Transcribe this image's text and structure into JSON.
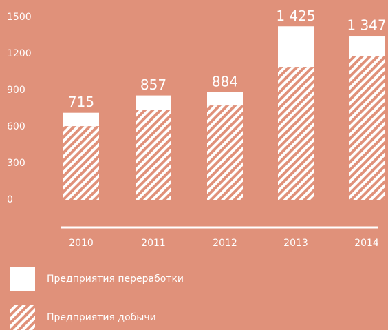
{
  "chart_data": {
    "type": "bar",
    "stacked": true,
    "categories": [
      "2010",
      "2011",
      "2012",
      "2013",
      "2014"
    ],
    "series": [
      {
        "name": "Предприятия добычи",
        "color": "#ffffff",
        "pattern": "hatch",
        "values": [
          605,
          736,
          775,
          1092,
          1183
        ]
      },
      {
        "name": "Предприятия переработки",
        "color": "#ffffff",
        "pattern": "solid",
        "values": [
          110,
          121,
          109,
          333,
          164
        ]
      }
    ],
    "totals": [
      715,
      857,
      884,
      1425,
      1347
    ],
    "total_labels": [
      "715",
      "857",
      "884",
      "1 425",
      "1 347"
    ],
    "ylim": [
      0,
      1500
    ],
    "yticks": [
      0,
      300,
      600,
      900,
      1200,
      1500
    ],
    "grid": false
  }
}
